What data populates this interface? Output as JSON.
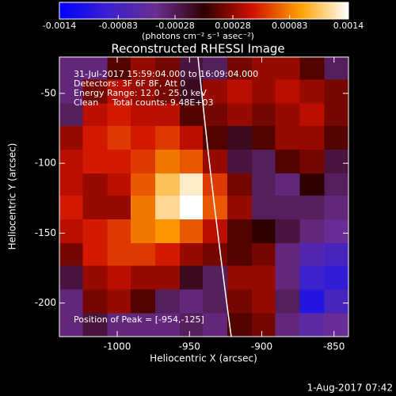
{
  "chart_data": {
    "type": "heatmap",
    "title": "Reconstructed RHESSI Image",
    "colorbar_label": "(photons cm⁻² s⁻¹ asec⁻²)",
    "xlabel": "Heliocentric X (arcsec)",
    "ylabel": "Heliocentric Y (arcsec)",
    "annotations": [
      "31-Jul-2017 15:59:04.000 to 16:09:04.000",
      "Detectors: 3F 6F 8F, Att 0",
      "Energy Range: 12.0 - 25.0 keV",
      "Clean     Total counts: 9.48E+03"
    ],
    "peak_label": "Position of Peak = [-954,-125]",
    "footer": "1-Aug-2017 07:42",
    "xlim": [
      -1040,
      -840
    ],
    "ylim": [
      -224,
      -24
    ],
    "xticks": [
      -1000,
      -950,
      -900,
      -850
    ],
    "yticks": [
      -50,
      -100,
      -150,
      -200
    ],
    "zlim": [
      -0.0014,
      0.0014
    ],
    "zticks": [
      -0.0014,
      -0.00083,
      -0.00028,
      0.00028,
      0.00083,
      0.0014
    ],
    "colormap": [
      "#0000ff",
      "#3a20d0",
      "#6a2e90",
      "#300000",
      "#d01000",
      "#ffa000",
      "#ffffff"
    ],
    "x": [
      -1032,
      -1015,
      -998,
      -982,
      -965,
      -948,
      -932,
      -915,
      -898,
      -882,
      -865,
      -848
    ],
    "y": [
      -32,
      -49,
      -66,
      -82,
      -99,
      -116,
      -132,
      -149,
      -166,
      -182,
      -199,
      -216
    ],
    "z": [
      [
        -0.0004,
        -0.0004,
        0.0001,
        0.0003,
        0.0002,
        -0.0002,
        -0.0003,
        0.0002,
        0.0003,
        0.0003,
        0.0001,
        -0.0003
      ],
      [
        -0.0004,
        0.0002,
        0.0004,
        0.0003,
        0.0002,
        -0.0001,
        0.0003,
        0.0004,
        0.0003,
        0.0004,
        0.0003,
        0.0002
      ],
      [
        -0.0003,
        0.0004,
        0.0005,
        0.0004,
        0.0004,
        0.0001,
        0.0002,
        0.0003,
        0.0002,
        0.0003,
        0.0004,
        0.0002
      ],
      [
        0.0003,
        0.0005,
        0.0006,
        0.0005,
        0.0006,
        0.0004,
        0.0001,
        -0.0001,
        0.0001,
        0.0003,
        0.0003,
        0.0001
      ],
      [
        0.0004,
        0.0005,
        0.0005,
        0.0006,
        0.0008,
        0.0007,
        0.0003,
        -0.0002,
        -0.0003,
        0.0001,
        0.0002,
        -0.0002
      ],
      [
        0.0004,
        0.0003,
        0.0004,
        0.0007,
        0.0011,
        0.0013,
        0.0006,
        0.0002,
        -0.0003,
        -0.0004,
        0,
        -0.0003
      ],
      [
        0.0005,
        0.0003,
        0.0003,
        0.0008,
        0.0012,
        0.0014,
        0.0007,
        0.0003,
        -0.0003,
        -0.0003,
        -0.0003,
        -0.0004
      ],
      [
        0.0004,
        0.0005,
        0.0006,
        0.0008,
        0.0009,
        0.0007,
        0.0004,
        0.0001,
        0,
        -0.0002,
        -0.0004,
        -0.0005
      ],
      [
        0.0002,
        0.0005,
        0.0006,
        0.0006,
        0.0005,
        0.0003,
        0.0002,
        0.0001,
        0.0002,
        -0.0004,
        -0.0007,
        -0.0008
      ],
      [
        -0.0002,
        0.0003,
        0.0004,
        0.0003,
        0.0003,
        -0.0001,
        -0.0003,
        0.0003,
        0.0003,
        -0.0004,
        -0.0009,
        -0.001
      ],
      [
        -0.0004,
        0.0002,
        0.0003,
        0.0001,
        -0.0003,
        -0.0004,
        -0.0003,
        0.0002,
        0.0003,
        -0.0003,
        -0.0011,
        -0.0008
      ],
      [
        -0.0004,
        -0.0002,
        -0.0004,
        -0.0004,
        -0.0004,
        -0.0003,
        -0.0004,
        0.0001,
        0.0002,
        -0.0004,
        -0.0006,
        -0.0005
      ]
    ]
  }
}
